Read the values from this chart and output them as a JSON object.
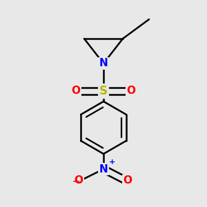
{
  "bg_color": "#e8e8e8",
  "atom_colors": {
    "C": "#000000",
    "N": "#0000ff",
    "O": "#ff0000",
    "S": "#b8b800"
  },
  "bond_color": "#000000",
  "bond_width": 1.8,
  "dbo": 0.022,
  "figsize": [
    3.0,
    3.0
  ],
  "dpi": 100
}
